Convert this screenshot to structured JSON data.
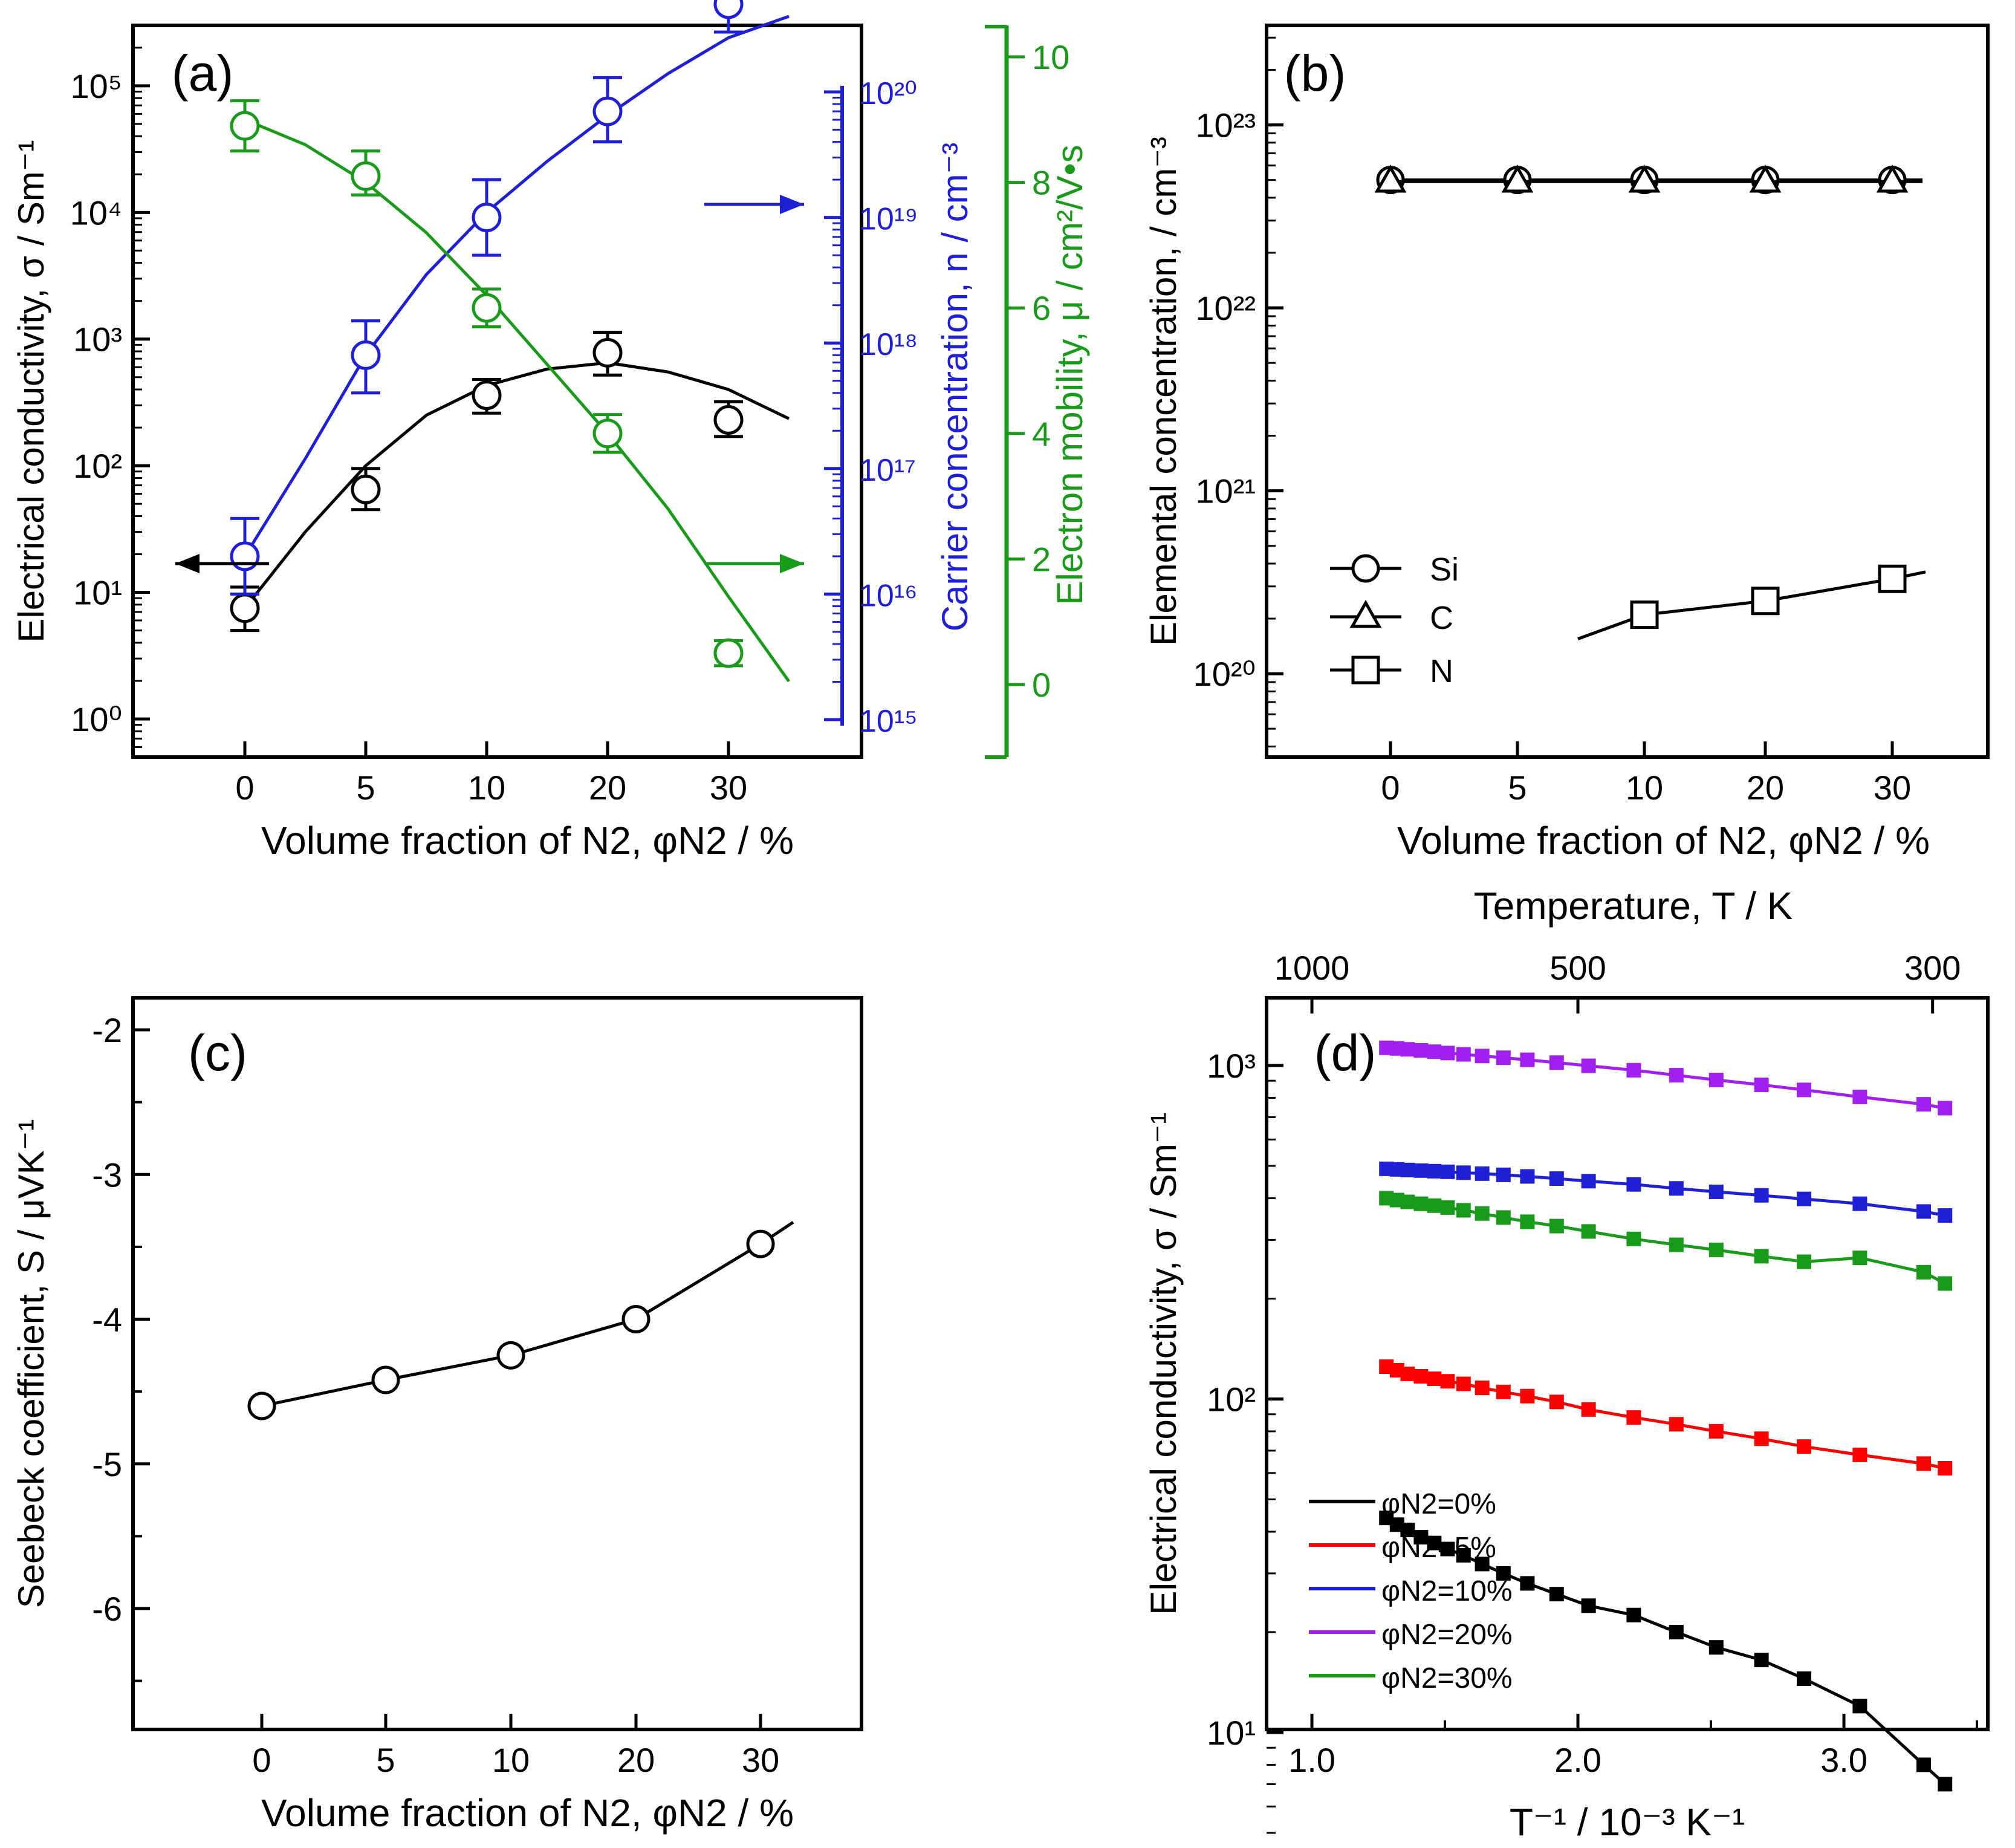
{
  "figure": {
    "colors": {
      "black": "#000000",
      "blue": "#1f1fd6",
      "green": "#1a9a1a",
      "red": "#ff0000",
      "violet": "#a020f0"
    }
  },
  "chart_data": [
    {
      "id": "a",
      "type": "scatter",
      "panel_label": "(a)",
      "xlabel": "Volume fraction of N2, φN2 / %",
      "categories": [
        "0",
        "5",
        "10",
        "20",
        "30"
      ],
      "series": [
        {
          "name": "Electrical conductivity",
          "axis": "left",
          "color": "#000000",
          "values": [
            7.5,
            65,
            360,
            780,
            230
          ],
          "err_low": [
            5,
            45,
            260,
            520,
            170
          ],
          "err_high": [
            11,
            95,
            480,
            1130,
            320
          ],
          "fit_x": [
            0,
            0.5,
            1,
            1.5,
            2,
            2.5,
            3,
            3.5,
            4,
            4.5
          ],
          "fit_y": [
            7.5,
            30,
            100,
            250,
            430,
            580,
            650,
            550,
            400,
            235
          ]
        },
        {
          "name": "Carrier concentration",
          "axis": "right1",
          "color": "#1f1fd6",
          "values": [
            2e+16,
            8e+17,
            1e+19,
            7e+19,
            5e+20
          ],
          "err_low": [
            1e+16,
            4e+17,
            5e+18,
            4e+19,
            3e+20
          ],
          "err_high": [
            4e+16,
            1.5e+18,
            2e+19,
            1.3e+20,
            8e+20
          ],
          "fit_x": [
            0,
            0.5,
            1,
            1.5,
            2,
            2.5,
            3,
            3.5,
            4,
            4.5
          ],
          "fit_y": [
            2e+16,
            1.2e+17,
            8e+17,
            3.5e+18,
            1.1e+19,
            2.8e+19,
            6.5e+19,
            1.4e+20,
            2.7e+20,
            4e+20
          ]
        },
        {
          "name": "Electron mobility",
          "axis": "right2",
          "color": "#1a9a1a",
          "values": [
            8.9,
            8.1,
            6.0,
            4.0,
            0.5
          ],
          "err_low": [
            8.5,
            7.8,
            5.7,
            3.7,
            0.3
          ],
          "err_high": [
            9.3,
            8.5,
            6.3,
            4.3,
            0.7
          ],
          "fit_x": [
            0,
            0.5,
            1,
            1.5,
            2,
            2.5,
            3,
            3.5,
            4,
            4.5
          ],
          "fit_y": [
            9.0,
            8.6,
            8.0,
            7.2,
            6.2,
            5.1,
            4.0,
            2.8,
            1.4,
            0.05
          ]
        }
      ],
      "yaxis_left": {
        "label": "Electrical conductivity, σ / Sm⁻¹",
        "scale": "log",
        "ylim": [
          0.5,
          300000
        ],
        "ticks": [
          1,
          10,
          100,
          1000,
          10000,
          100000
        ],
        "tick_labels": [
          "10⁰",
          "10¹",
          "10²",
          "10³",
          "10⁴",
          "10⁵"
        ]
      },
      "yaxis_right1": {
        "label": "Carrier concentration, n / cm⁻³",
        "scale": "log",
        "ylim": [
          1000000000000000.0,
          1e+20
        ],
        "ticks": [
          1000000000000000.0,
          1e+16,
          1e+17,
          1e+18,
          1e+19,
          1e+20
        ],
        "tick_labels": [
          "10¹⁵",
          "10¹⁶",
          "10¹⁷",
          "10¹⁸",
          "10¹⁹",
          "10²⁰"
        ]
      },
      "yaxis_right2": {
        "label": "Electron mobility, μ / cm²/V•s",
        "scale": "linear",
        "ylim": [
          -1,
          10.5
        ],
        "ticks": [
          0,
          2,
          4,
          6,
          8,
          10
        ],
        "tick_labels": [
          "0",
          "2",
          "4",
          "6",
          "8",
          "10"
        ]
      },
      "annotations": [
        "arrow left → conductivity axis",
        "arrows right → carrier concentration and mobility axes"
      ]
    },
    {
      "id": "b",
      "type": "scatter",
      "panel_label": "(b)",
      "xlabel": "Volume fraction of N2, φN2 / %",
      "ylabel": "Elemental concentration, / cm⁻³",
      "categories": [
        "0",
        "5",
        "10",
        "20",
        "30"
      ],
      "yaxis": {
        "scale": "log",
        "ylim": [
          3.5e+19,
          3.5e+23
        ],
        "ticks": [
          1e+20,
          1e+21,
          1e+22,
          1e+23
        ],
        "tick_labels": [
          "10²⁰",
          "10²¹",
          "10²²",
          "10²³"
        ]
      },
      "series": [
        {
          "name": "Si",
          "marker": "circle",
          "values": [
            5e+22,
            5e+22,
            5e+22,
            5e+22,
            5e+22
          ]
        },
        {
          "name": "C",
          "marker": "triangle",
          "values": [
            4.9e+22,
            4.9e+22,
            4.9e+22,
            4.9e+22,
            4.9e+22
          ]
        },
        {
          "name": "N",
          "marker": "square",
          "x_index": [
            2,
            3,
            4
          ],
          "values": [
            2.1e+20,
            2.5e+20,
            3.3e+20
          ]
        }
      ],
      "legend": {
        "placement": "lower-left",
        "entries": [
          "Si",
          "C",
          "N"
        ]
      }
    },
    {
      "id": "c",
      "type": "line",
      "panel_label": "(c)",
      "xlabel": "Volume fraction of N2, φN2 / %",
      "ylabel": "Seebeck coefficient, S / μVK⁻¹",
      "categories": [
        "0",
        "5",
        "10",
        "20",
        "30"
      ],
      "ylim": [
        -6.7,
        -1.8
      ],
      "yticks": [
        -2,
        -3,
        -4,
        -5,
        -6
      ],
      "ytick_labels": [
        "-2",
        "-3",
        "-4",
        "-5",
        "-6"
      ],
      "values": [
        -4.6,
        -4.42,
        -4.25,
        -4.0,
        -3.48
      ]
    },
    {
      "id": "d",
      "type": "line",
      "panel_label": "(d)",
      "xlabel": "T⁻¹ / 10⁻³ K⁻¹",
      "ylabel": "Electrical conductivity, σ / Sm⁻¹",
      "xlim": [
        0.85,
        3.6
      ],
      "xticks": [
        1.0,
        2.0,
        3.0
      ],
      "xtick_labels": [
        "1.0",
        "2.0",
        "3.0"
      ],
      "x2label": "Temperature, T /  K",
      "x2ticks": [
        1000,
        500,
        300
      ],
      "x2tick_labels": [
        "1000",
        "500",
        "300"
      ],
      "yaxis": {
        "scale": "log",
        "ylim": [
          3.3,
          1800
        ],
        "ticks": [
          10,
          100,
          1000
        ],
        "tick_labels": [
          "10¹",
          "10²",
          "10³"
        ]
      },
      "x": [
        1.28,
        1.32,
        1.36,
        1.41,
        1.46,
        1.51,
        1.57,
        1.64,
        1.72,
        1.81,
        1.92,
        2.04,
        2.21,
        2.37,
        2.52,
        2.69,
        2.85,
        3.06,
        3.3,
        3.38
      ],
      "series": [
        {
          "name": "φN2=0%",
          "color": "#000000",
          "values": [
            44,
            42,
            40.5,
            38.5,
            37,
            35.5,
            34,
            32,
            30,
            28,
            26,
            24,
            22.5,
            20,
            18,
            16.5,
            14.5,
            12,
            8,
            7
          ]
        },
        {
          "name": "φN2=5%",
          "color": "#ff0000",
          "values": [
            125,
            122,
            119,
            117,
            115,
            113,
            111,
            108,
            105,
            102,
            98,
            93,
            88,
            84,
            80,
            76,
            72,
            68,
            64,
            62
          ]
        },
        {
          "name": "φN2=10%",
          "color": "#1f1fd6",
          "values": [
            490,
            488,
            486,
            484,
            482,
            480,
            477,
            474,
            470,
            465,
            458,
            450,
            440,
            428,
            418,
            408,
            398,
            385,
            365,
            355
          ]
        },
        {
          "name": "φN2=20%",
          "color": "#a020f0",
          "values": [
            1130,
            1125,
            1118,
            1110,
            1100,
            1090,
            1080,
            1068,
            1055,
            1040,
            1020,
            998,
            968,
            935,
            905,
            875,
            845,
            805,
            765,
            745
          ]
        },
        {
          "name": "φN2=30%",
          "color": "#1a9a1a",
          "values": [
            400,
            395,
            390,
            385,
            380,
            375,
            368,
            360,
            350,
            340,
            330,
            318,
            302,
            290,
            280,
            268,
            258,
            265,
            240,
            222
          ]
        }
      ],
      "legend": {
        "placement": "lower-left",
        "entries": [
          "φN2=0%",
          "φN2=5%",
          "φN2=10%",
          "φN2=20%",
          "φN2=30%"
        ]
      }
    }
  ]
}
